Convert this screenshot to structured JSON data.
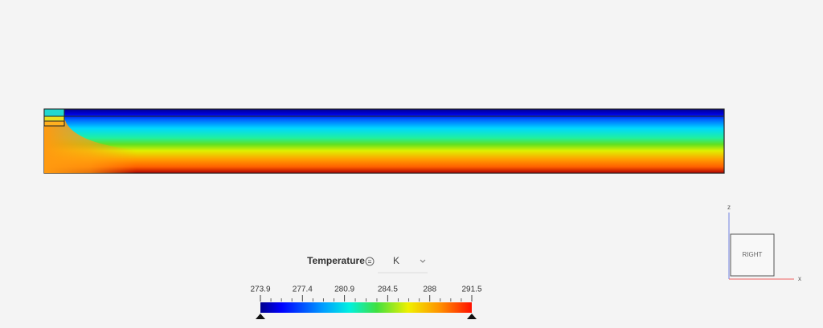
{
  "legend": {
    "title": "Temperature",
    "unit": "K",
    "ticks": [
      273.9,
      277.4,
      280.9,
      284.5,
      288,
      291.5
    ]
  },
  "view_cube": {
    "face": "RIGHT",
    "axes": {
      "z": "z",
      "x": "x"
    }
  }
}
